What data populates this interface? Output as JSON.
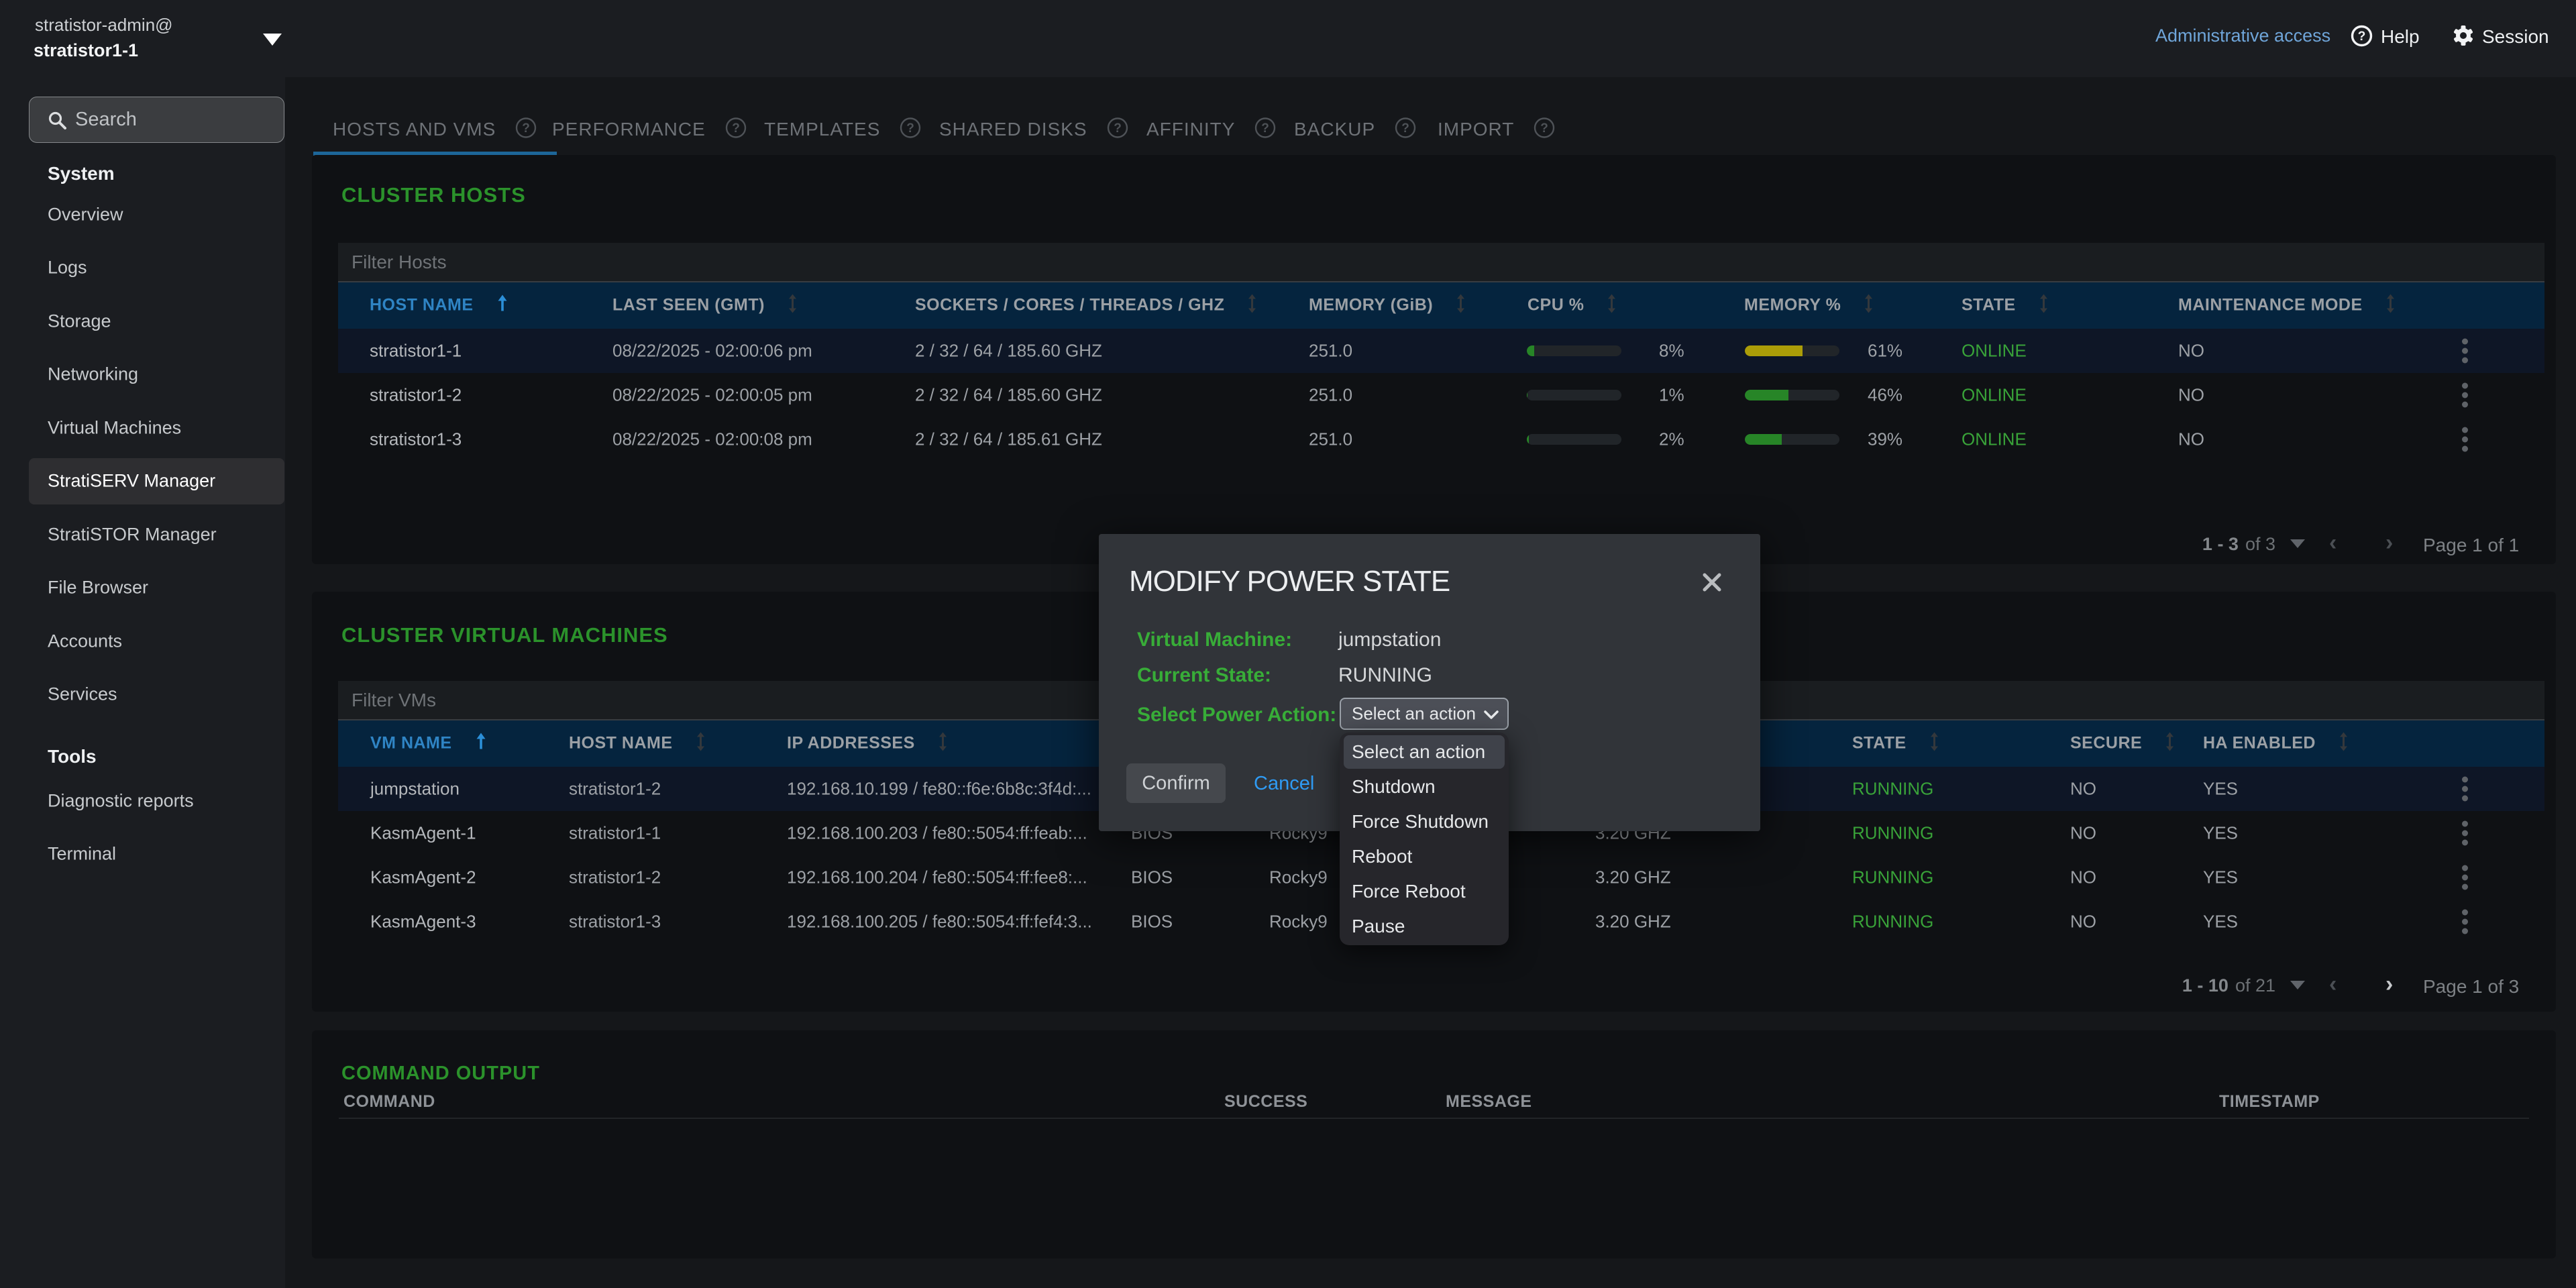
{
  "user": {
    "line1": "stratistor-admin@",
    "line2": "stratistor1-1"
  },
  "topbar": {
    "admin_access": "Administrative access",
    "help": "Help",
    "session": "Session"
  },
  "sidebar": {
    "search_placeholder": "Search",
    "items": [
      {
        "label": "System",
        "type": "header"
      },
      {
        "label": "Overview",
        "type": "item"
      },
      {
        "label": "Logs",
        "type": "item"
      },
      {
        "label": "Storage",
        "type": "item"
      },
      {
        "label": "Networking",
        "type": "item"
      },
      {
        "label": "Virtual Machines",
        "type": "item"
      },
      {
        "label": "StratiSERV Manager",
        "type": "item",
        "selected": true
      },
      {
        "label": "StratiSTOR Manager",
        "type": "item"
      },
      {
        "label": "File Browser",
        "type": "item"
      },
      {
        "label": "Accounts",
        "type": "item"
      },
      {
        "label": "Services",
        "type": "item"
      },
      {
        "label": "Tools",
        "type": "header"
      },
      {
        "label": "Diagnostic reports",
        "type": "item"
      },
      {
        "label": "Terminal",
        "type": "item"
      }
    ]
  },
  "tabs": [
    {
      "label": "HOSTS AND VMS",
      "active": true
    },
    {
      "label": "PERFORMANCE",
      "active": false
    },
    {
      "label": "TEMPLATES",
      "active": false
    },
    {
      "label": "SHARED DISKS",
      "active": false
    },
    {
      "label": "AFFINITY",
      "active": false
    },
    {
      "label": "BACKUP",
      "active": false
    },
    {
      "label": "IMPORT",
      "active": false
    }
  ],
  "hosts": {
    "title": "CLUSTER HOSTS",
    "filter_placeholder": "Filter Hosts",
    "columns": [
      "HOST NAME",
      "LAST SEEN (GMT)",
      "SOCKETS / CORES / THREADS / GHZ",
      "MEMORY (GiB)",
      "CPU %",
      "MEMORY %",
      "STATE",
      "MAINTENANCE MODE"
    ],
    "sorted_column": "HOST NAME",
    "rows": [
      {
        "host": "stratistor1-1",
        "last_seen": "08/22/2025 - 02:00:06 pm",
        "sockets": "2 / 32 / 64 / 185.60 GHZ",
        "memory_gib": "251.0",
        "cpu_pct": 8,
        "mem_pct": 61,
        "state": "ONLINE",
        "maintenance": "NO"
      },
      {
        "host": "stratistor1-2",
        "last_seen": "08/22/2025 - 02:00:05 pm",
        "sockets": "2 / 32 / 64 / 185.60 GHZ",
        "memory_gib": "251.0",
        "cpu_pct": 1,
        "mem_pct": 46,
        "state": "ONLINE",
        "maintenance": "NO"
      },
      {
        "host": "stratistor1-3",
        "last_seen": "08/22/2025 - 02:00:08 pm",
        "sockets": "2 / 32 / 64 / 185.61 GHZ",
        "memory_gib": "251.0",
        "cpu_pct": 2,
        "mem_pct": 39,
        "state": "ONLINE",
        "maintenance": "NO"
      }
    ],
    "pagination": {
      "range": "1 - 3",
      "of": "of 3",
      "page": "Page 1 of 1",
      "prev_enabled": false,
      "next_enabled": false
    }
  },
  "vms": {
    "title": "CLUSTER VIRTUAL MACHINES",
    "filter_placeholder": "Filter VMs",
    "columns": [
      "VM NAME",
      "HOST NAME",
      "IP ADDRESSES",
      "",
      "",
      "",
      "STATE",
      "SECURE",
      "HA ENABLED"
    ],
    "sorted_column": "VM NAME",
    "rows": [
      {
        "vm": "jumpstation",
        "host": "stratistor1-2",
        "ips": "192.168.10.199 / fe80::f6e:6b8c:3f4d:...",
        "firmware": "",
        "os": "",
        "ghz": "",
        "state": "RUNNING",
        "secure": "NO",
        "ha": "YES"
      },
      {
        "vm": "KasmAgent-1",
        "host": "stratistor1-1",
        "ips": "192.168.100.203 / fe80::5054:ff:feab:...",
        "firmware": "BIOS",
        "os": "Rocky9",
        "ghz": "3.20 GHZ",
        "state": "RUNNING",
        "secure": "NO",
        "ha": "YES"
      },
      {
        "vm": "KasmAgent-2",
        "host": "stratistor1-2",
        "ips": "192.168.100.204 / fe80::5054:ff:fee8:...",
        "firmware": "BIOS",
        "os": "Rocky9",
        "ghz": "3.20 GHZ",
        "state": "RUNNING",
        "secure": "NO",
        "ha": "YES"
      },
      {
        "vm": "KasmAgent-3",
        "host": "stratistor1-3",
        "ips": "192.168.100.205 / fe80::5054:ff:fef4:3...",
        "firmware": "BIOS",
        "os": "Rocky9",
        "ghz": "3.20 GHZ",
        "state": "RUNNING",
        "secure": "NO",
        "ha": "YES"
      }
    ],
    "pagination": {
      "range": "1 - 10",
      "of": "of 21",
      "page": "Page 1 of 3",
      "prev_enabled": false,
      "next_enabled": true
    }
  },
  "command_output": {
    "title": "COMMAND OUTPUT",
    "columns": [
      "COMMAND",
      "SUCCESS",
      "MESSAGE",
      "TIMESTAMP"
    ],
    "rows": []
  },
  "modal": {
    "title": "MODIFY POWER STATE",
    "fields": [
      {
        "label": "Virtual Machine:",
        "value": "jumpstation"
      },
      {
        "label": "Current State:",
        "value": "RUNNING"
      }
    ],
    "action_label": "Select Power Action:",
    "select_value": "Select an action",
    "menu_items": [
      "Select an action",
      "Shutdown",
      "Force Shutdown",
      "Reboot",
      "Force Reboot",
      "Pause"
    ],
    "selected_menu_item": "Select an action",
    "confirm_label": "Confirm",
    "cancel_label": "Cancel"
  },
  "colors": {
    "green_heading": "#2b922b",
    "green_state": "#39a339",
    "green_label": "#38ad38",
    "bar_green": "#278527",
    "bar_yellow": "#ab9d08",
    "blue_link": "#6fa5d9",
    "blue_sort": "#2b9af3",
    "tab_underline": "#1d6699"
  }
}
